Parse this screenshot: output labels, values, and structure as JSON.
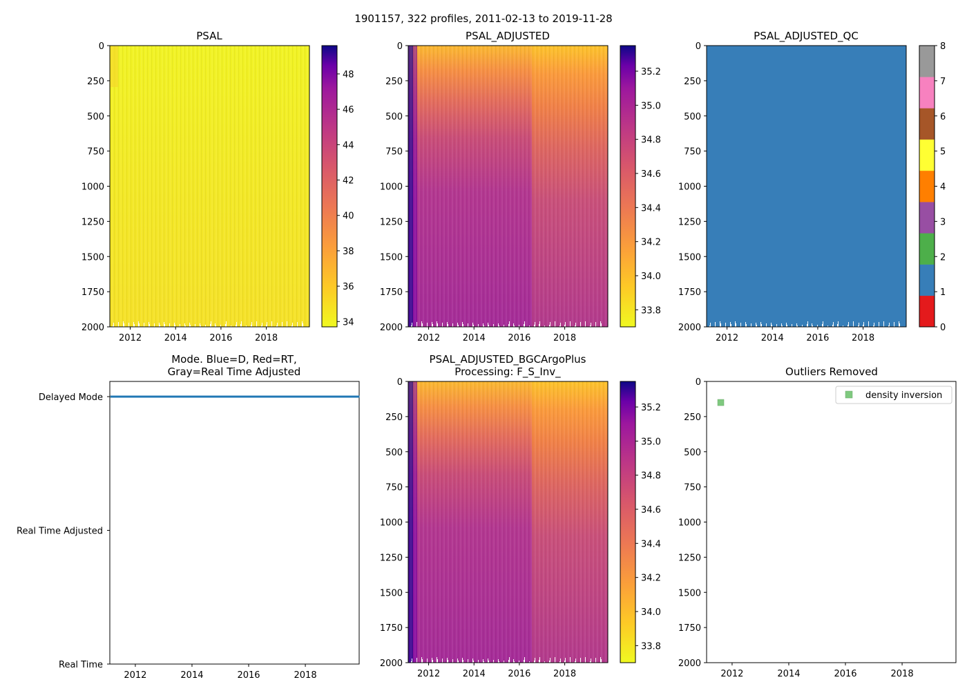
{
  "figure": {
    "title": "1901157, 322 profiles, 2011-02-13 to 2019-11-28"
  },
  "chart_data": [
    {
      "id": "psal",
      "type": "heatmap",
      "title": "PSAL",
      "x_ticks": [
        2012,
        2014,
        2016,
        2018
      ],
      "xlim": [
        2011.1,
        2019.9
      ],
      "y_ticks": [
        0,
        250,
        500,
        750,
        1000,
        1250,
        1500,
        1750,
        2000
      ],
      "ylim": [
        2000,
        0
      ],
      "colorbar": {
        "colormap": "plasma_r",
        "range": [
          33.7,
          49.6
        ],
        "ticks": [
          34,
          36,
          38,
          40,
          42,
          44,
          46,
          48
        ]
      },
      "fill_note": "nearly uniform yellow (~34-35)"
    },
    {
      "id": "psal_adjusted",
      "type": "heatmap",
      "title": "PSAL_ADJUSTED",
      "x_ticks": [
        2012,
        2014,
        2016,
        2018
      ],
      "xlim": [
        2011.1,
        2019.9
      ],
      "y_ticks": [
        0,
        250,
        500,
        750,
        1000,
        1250,
        1500,
        1750,
        2000
      ],
      "ylim": [
        2000,
        0
      ],
      "colorbar": {
        "colormap": "plasma_r",
        "range": [
          33.7,
          35.35
        ],
        "ticks": [
          33.8,
          34.0,
          34.2,
          34.4,
          34.6,
          34.8,
          35.0,
          35.2
        ]
      }
    },
    {
      "id": "psal_adjusted_qc",
      "type": "heatmap",
      "title": "PSAL_ADJUSTED_QC",
      "x_ticks": [
        2012,
        2014,
        2016,
        2018
      ],
      "xlim": [
        2011.1,
        2019.9
      ],
      "y_ticks": [
        0,
        250,
        500,
        750,
        1000,
        1250,
        1500,
        1750,
        2000
      ],
      "ylim": [
        2000,
        0
      ],
      "colorbar": {
        "colormap": "categorical",
        "range": [
          0,
          8
        ],
        "ticks": [
          0,
          1,
          2,
          3,
          4,
          5,
          6,
          7,
          8
        ],
        "segments": [
          "#e41a1c",
          "#377eb8",
          "#4daf4a",
          "#984ea3",
          "#ff7f00",
          "#ffff33",
          "#a65628",
          "#f781bf",
          "#999999"
        ]
      },
      "fill_value": 1
    },
    {
      "id": "mode",
      "type": "line",
      "title_line1": "Mode. Blue=D, Red=RT,",
      "title_line2": "Gray=Real Time Adjusted",
      "x_ticks": [
        2012,
        2014,
        2016,
        2018
      ],
      "xlim": [
        2011.1,
        2019.9
      ],
      "y_categories": [
        "Delayed Mode",
        "Real Time Adjusted",
        "Real Time"
      ],
      "series": [
        {
          "name": "Delayed Mode",
          "color": "#1f77b4",
          "x": [
            2011.12,
            2019.91
          ],
          "y": [
            "Delayed Mode",
            "Delayed Mode"
          ]
        }
      ]
    },
    {
      "id": "psal_bgc",
      "type": "heatmap",
      "title_line1": "PSAL_ADJUSTED_BGCArgoPlus",
      "title_line2": "Processing: F_S_Inv_",
      "x_ticks": [
        2012,
        2014,
        2016,
        2018
      ],
      "xlim": [
        2011.1,
        2019.9
      ],
      "y_ticks": [
        0,
        250,
        500,
        750,
        1000,
        1250,
        1500,
        1750,
        2000
      ],
      "ylim": [
        2000,
        0
      ],
      "colorbar": {
        "colormap": "plasma_r",
        "range": [
          33.7,
          35.35
        ],
        "ticks": [
          33.8,
          34.0,
          34.2,
          34.4,
          34.6,
          34.8,
          35.0,
          35.2
        ]
      }
    },
    {
      "id": "outliers",
      "type": "scatter",
      "title": "Outliers Removed",
      "x_ticks": [
        2012,
        2014,
        2016,
        2018
      ],
      "xlim": [
        2011.1,
        2019.9
      ],
      "y_ticks": [
        0,
        250,
        500,
        750,
        1000,
        1250,
        1500,
        1750,
        2000
      ],
      "ylim": [
        2000,
        0
      ],
      "legend": {
        "placement": "top-right",
        "entries": [
          {
            "label": "density inversion",
            "color": "#7fc97f"
          }
        ]
      },
      "series": [
        {
          "name": "density inversion",
          "color": "#7fc97f",
          "x": [
            2011.6
          ],
          "y": [
            150
          ]
        }
      ]
    }
  ]
}
